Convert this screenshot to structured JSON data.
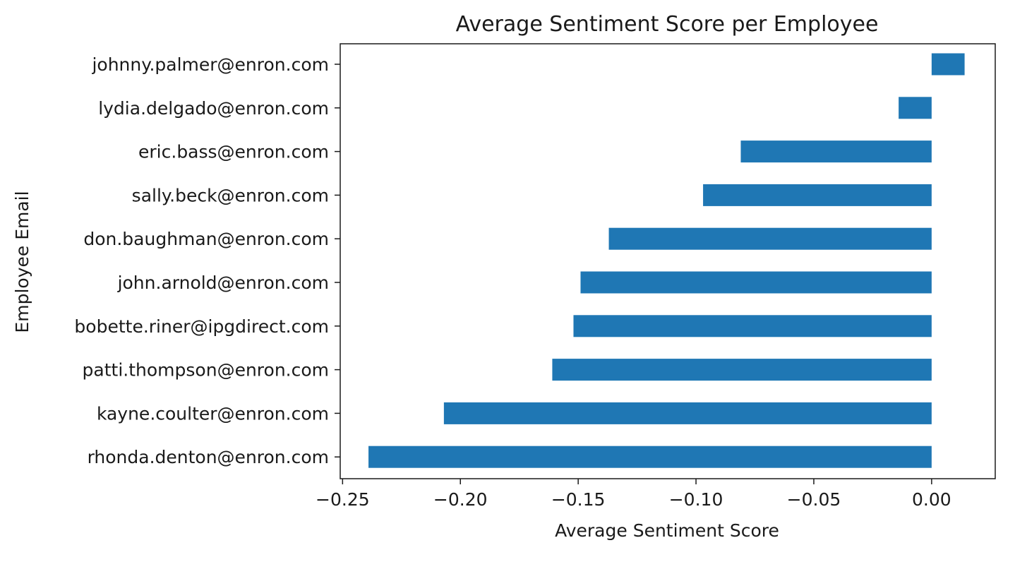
{
  "chart_data": {
    "type": "bar",
    "orientation": "horizontal",
    "title": "Average Sentiment Score per Employee",
    "xlabel": "Average Sentiment Score",
    "ylabel": "Employee Email",
    "categories": [
      "johnny.palmer@enron.com",
      "lydia.delgado@enron.com",
      "eric.bass@enron.com",
      "sally.beck@enron.com",
      "don.baughman@enron.com",
      "john.arnold@enron.com",
      "bobette.riner@ipgdirect.com",
      "patti.thompson@enron.com",
      "kayne.coulter@enron.com",
      "rhonda.denton@enron.com"
    ],
    "values": [
      0.014,
      -0.014,
      -0.081,
      -0.097,
      -0.137,
      -0.149,
      -0.152,
      -0.161,
      -0.207,
      -0.239
    ],
    "xlim": [
      -0.251,
      0.027
    ],
    "xticks": [
      -0.25,
      -0.2,
      -0.15,
      -0.1,
      -0.05,
      0.0
    ],
    "xtick_labels": [
      "−0.25",
      "−0.20",
      "−0.15",
      "−0.10",
      "−0.05",
      "0.00"
    ],
    "grid": false,
    "legend": "none",
    "bar_color": "#1f77b4"
  }
}
